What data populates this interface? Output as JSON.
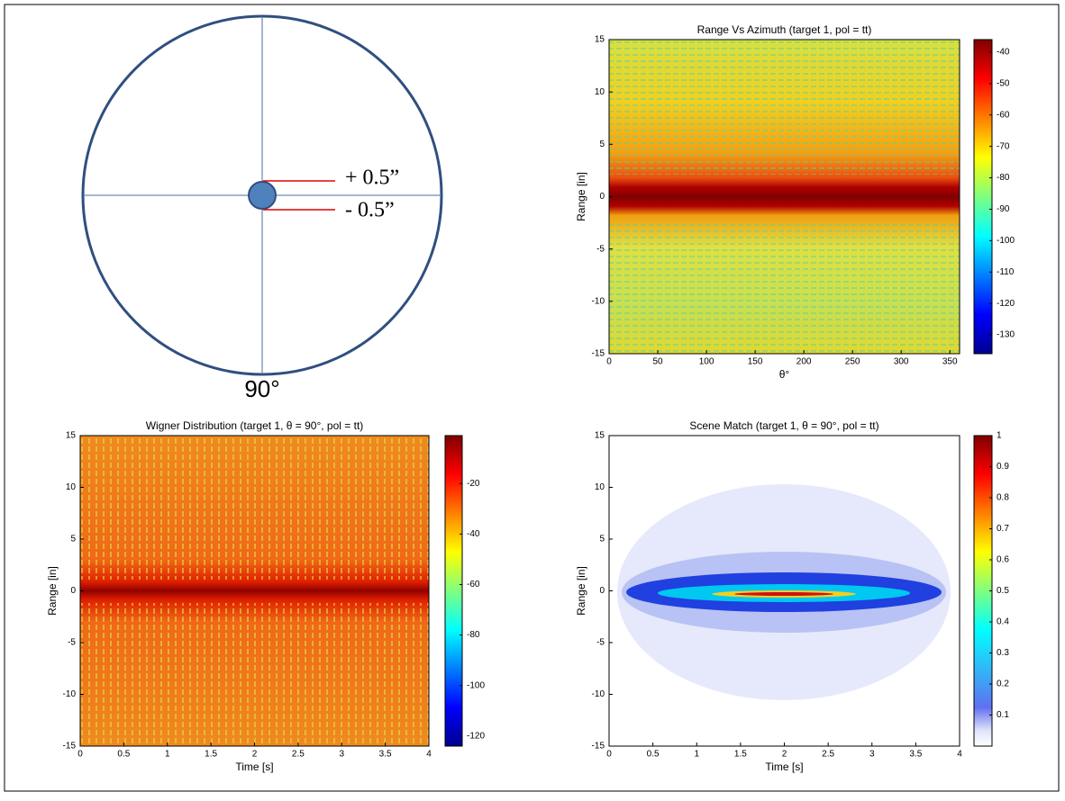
{
  "diagram": {
    "label_plus": "+ 0.5”",
    "label_minus": "-  0.5”",
    "angle_label": "90°"
  },
  "chart_data": [
    {
      "type": "heatmap",
      "title": "Range Vs Azimuth (target 1, pol = tt)",
      "xlabel": "θ°",
      "ylabel": "Range [in]",
      "xlim": [
        0,
        360
      ],
      "xticks": [
        0,
        50,
        100,
        150,
        200,
        250,
        300,
        350
      ],
      "ylim": [
        -15,
        15
      ],
      "yticks": [
        -15,
        -10,
        -5,
        0,
        5,
        10,
        15
      ],
      "clim": [
        -136,
        -36
      ],
      "cticks": [
        -40,
        -50,
        -60,
        -70,
        -80,
        -90,
        -100,
        -110,
        -120,
        -130
      ],
      "colormap": "jet"
    },
    {
      "type": "heatmap",
      "title": "Wigner Distribution (target 1,  θ = 90°, pol = tt)",
      "xlabel": "Time [s]",
      "ylabel": "Range [in]",
      "xlim": [
        0,
        4
      ],
      "xticks": [
        0,
        0.5,
        1,
        1.5,
        2,
        2.5,
        3,
        3.5,
        4
      ],
      "ylim": [
        -15,
        15
      ],
      "yticks": [
        -15,
        -10,
        -5,
        0,
        5,
        10,
        15
      ],
      "clim": [
        -124,
        -1
      ],
      "cticks": [
        -20,
        -40,
        -60,
        -80,
        -100,
        -120
      ],
      "colormap": "jet"
    },
    {
      "type": "heatmap",
      "title": "Scene Match (target 1,  θ = 90°, pol = tt)",
      "xlabel": "Time [s]",
      "ylabel": "Range [in]",
      "xlim": [
        0,
        4
      ],
      "xticks": [
        0,
        0.5,
        1,
        1.5,
        2,
        2.5,
        3,
        3.5,
        4
      ],
      "ylim": [
        -15,
        15
      ],
      "yticks": [
        -15,
        -10,
        -5,
        0,
        5,
        10,
        15
      ],
      "clim": [
        0,
        1
      ],
      "cticks": [
        0.1,
        0.2,
        0.3,
        0.4,
        0.5,
        0.6,
        0.7,
        0.8,
        0.9,
        1
      ],
      "colormap": "jet-white"
    }
  ]
}
